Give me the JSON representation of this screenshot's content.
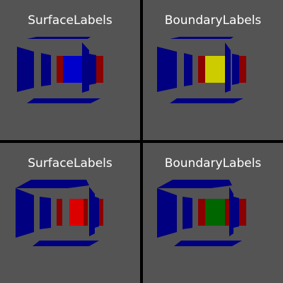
{
  "viewports": [
    {
      "title": "SurfaceLabels",
      "colors": {
        "walls": "#000080",
        "red": "#8b0000",
        "inner": "#0000cc"
      }
    },
    {
      "title": "BoundaryLabels",
      "colors": {
        "walls": "#000080",
        "red": "#8b0000",
        "inner": "#cccc00"
      }
    },
    {
      "title": "SurfaceLabels",
      "colors": {
        "walls": "#000080",
        "red": "#8b0000",
        "inner": "#dd0000"
      }
    },
    {
      "title": "BoundaryLabels",
      "colors": {
        "walls": "#000080",
        "red": "#8b0000",
        "inner": "#006600"
      }
    }
  ]
}
